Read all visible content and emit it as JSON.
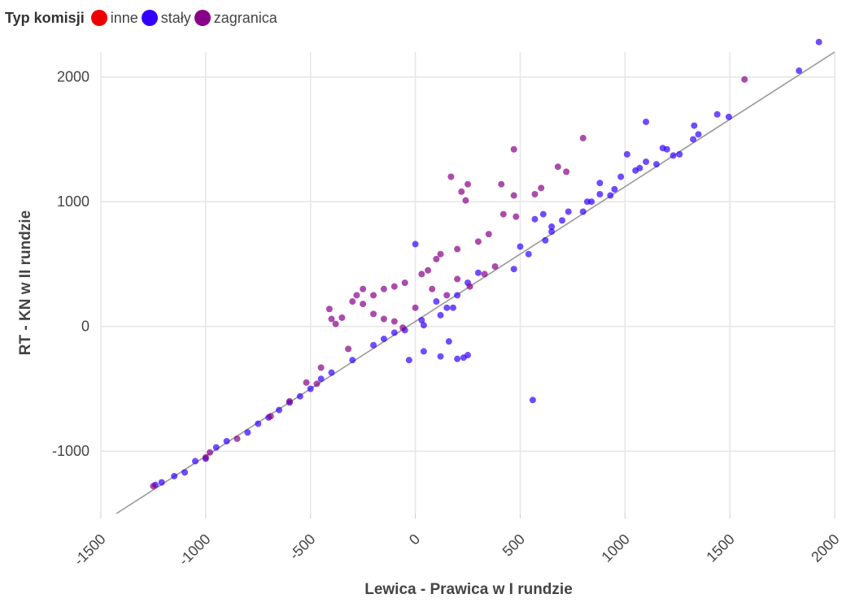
{
  "legend": {
    "title": "Typ komisji",
    "items": [
      {
        "label": "inne",
        "color": "#ee0000"
      },
      {
        "label": "stały",
        "color": "#3300ff"
      },
      {
        "label": "zagranica",
        "color": "#880088"
      }
    ]
  },
  "chart_data": {
    "type": "scatter",
    "title": "",
    "xlabel": "Lewica - Prawica w I rundzie",
    "ylabel": "RT - KN w II rundzie",
    "xlim": [
      -1500,
      2000
    ],
    "ylim": [
      -1500,
      2200
    ],
    "x_ticks": [
      -1500,
      -1000,
      -500,
      0,
      500,
      1000,
      1500,
      2000
    ],
    "x_tick_labels": [
      "-1500",
      "-1000",
      "-500",
      "0",
      "500",
      "1000",
      "1500",
      "2000"
    ],
    "y_ticks": [
      -1000,
      0,
      1000,
      2000
    ],
    "y_tick_labels": [
      "-1000",
      "0",
      "1000",
      "2000"
    ],
    "grid": true,
    "legend_position": "top-left",
    "reference_line": {
      "intercept": 40,
      "slope": 1.08
    },
    "series": [
      {
        "name": "stały",
        "color": "#3300ff",
        "points": [
          [
            1925,
            2280
          ],
          [
            1830,
            2050
          ],
          [
            1495,
            1680
          ],
          [
            1440,
            1700
          ],
          [
            1350,
            1540
          ],
          [
            1330,
            1610
          ],
          [
            1325,
            1500
          ],
          [
            1100,
            1640
          ],
          [
            1180,
            1430
          ],
          [
            1230,
            1370
          ],
          [
            1150,
            1300
          ],
          [
            1200,
            1420
          ],
          [
            1050,
            1250
          ],
          [
            980,
            1200
          ],
          [
            880,
            1150
          ],
          [
            1100,
            1320
          ],
          [
            1010,
            1380
          ],
          [
            950,
            1100
          ],
          [
            800,
            920
          ],
          [
            820,
            1000
          ],
          [
            700,
            850
          ],
          [
            650,
            800
          ],
          [
            620,
            690
          ],
          [
            540,
            580
          ],
          [
            500,
            640
          ],
          [
            470,
            460
          ],
          [
            300,
            430
          ],
          [
            250,
            350
          ],
          [
            200,
            250
          ],
          [
            100,
            200
          ],
          [
            150,
            150
          ],
          [
            0,
            660
          ],
          [
            30,
            50
          ],
          [
            -50,
            -30
          ],
          [
            -100,
            -50
          ],
          [
            -150,
            -100
          ],
          [
            -200,
            -150
          ],
          [
            -300,
            -270
          ],
          [
            -400,
            -370
          ],
          [
            -450,
            -420
          ],
          [
            -500,
            -500
          ],
          [
            -550,
            -560
          ],
          [
            -600,
            -610
          ],
          [
            -650,
            -670
          ],
          [
            -700,
            -730
          ],
          [
            -750,
            -780
          ],
          [
            -800,
            -850
          ],
          [
            -900,
            -920
          ],
          [
            -950,
            -970
          ],
          [
            -1000,
            -1060
          ],
          [
            -1050,
            -1080
          ],
          [
            -1100,
            -1170
          ],
          [
            -1150,
            -1200
          ],
          [
            -1210,
            -1250
          ],
          [
            -1240,
            -1270
          ],
          [
            40,
            10
          ],
          [
            120,
            90
          ],
          [
            180,
            150
          ],
          [
            160,
            -120
          ],
          [
            230,
            -250
          ],
          [
            250,
            -230
          ],
          [
            200,
            -260
          ],
          [
            40,
            -200
          ],
          [
            120,
            -240
          ],
          [
            -30,
            -270
          ],
          [
            560,
            -590
          ],
          [
            570,
            860
          ],
          [
            610,
            900
          ],
          [
            650,
            760
          ],
          [
            730,
            920
          ],
          [
            840,
            1000
          ],
          [
            880,
            1060
          ],
          [
            930,
            1050
          ],
          [
            1070,
            1270
          ],
          [
            1260,
            1380
          ]
        ]
      },
      {
        "name": "zagranica",
        "color": "#880088",
        "points": [
          [
            1570,
            1980
          ],
          [
            470,
            1420
          ],
          [
            800,
            1510
          ],
          [
            680,
            1280
          ],
          [
            720,
            1240
          ],
          [
            600,
            1110
          ],
          [
            570,
            1060
          ],
          [
            410,
            1140
          ],
          [
            470,
            1050
          ],
          [
            250,
            1140
          ],
          [
            170,
            1200
          ],
          [
            220,
            1080
          ],
          [
            240,
            1010
          ],
          [
            480,
            880
          ],
          [
            420,
            900
          ],
          [
            350,
            740
          ],
          [
            300,
            680
          ],
          [
            200,
            620
          ],
          [
            120,
            580
          ],
          [
            100,
            540
          ],
          [
            60,
            450
          ],
          [
            30,
            420
          ],
          [
            -50,
            350
          ],
          [
            -100,
            320
          ],
          [
            -150,
            300
          ],
          [
            -200,
            250
          ],
          [
            -250,
            300
          ],
          [
            -280,
            250
          ],
          [
            -300,
            200
          ],
          [
            -350,
            70
          ],
          [
            -380,
            20
          ],
          [
            -400,
            60
          ],
          [
            -410,
            140
          ],
          [
            -250,
            180
          ],
          [
            -200,
            100
          ],
          [
            -150,
            60
          ],
          [
            -100,
            40
          ],
          [
            -60,
            -10
          ],
          [
            0,
            150
          ],
          [
            80,
            300
          ],
          [
            150,
            250
          ],
          [
            200,
            380
          ],
          [
            260,
            320
          ],
          [
            330,
            420
          ],
          [
            380,
            480
          ],
          [
            -320,
            -180
          ],
          [
            -450,
            -330
          ],
          [
            -600,
            -600
          ],
          [
            -690,
            -720
          ],
          [
            -850,
            -900
          ],
          [
            -980,
            -1010
          ],
          [
            -1250,
            -1280
          ],
          [
            -1000,
            -1050
          ],
          [
            -470,
            -460
          ],
          [
            -520,
            -450
          ]
        ]
      },
      {
        "name": "inne",
        "color": "#ee0000",
        "points": []
      }
    ]
  }
}
